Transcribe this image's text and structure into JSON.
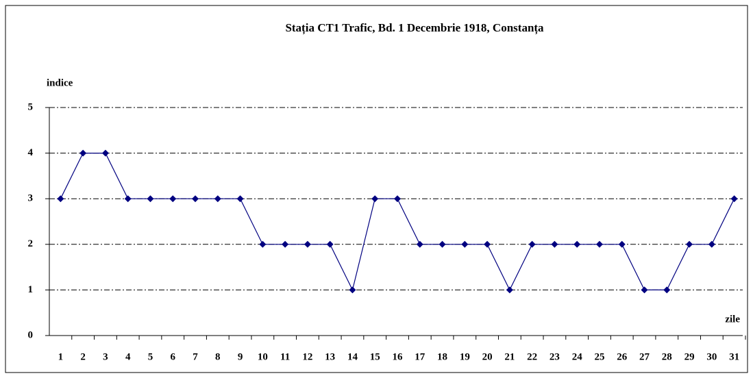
{
  "chart_data": {
    "type": "line",
    "title": "Stația CT1 Trafic, Bd. 1 Decembrie 1918, Constanța",
    "y_label": "indice",
    "x_label": "zile",
    "categories": [
      "1",
      "2",
      "3",
      "4",
      "5",
      "6",
      "7",
      "8",
      "9",
      "10",
      "11",
      "12",
      "13",
      "14",
      "15",
      "16",
      "17",
      "18",
      "19",
      "20",
      "21",
      "22",
      "23",
      "24",
      "25",
      "26",
      "27",
      "28",
      "29",
      "30",
      "31"
    ],
    "values": [
      3,
      4,
      4,
      3,
      3,
      3,
      3,
      3,
      3,
      2,
      2,
      2,
      2,
      1,
      3,
      3,
      2,
      2,
      2,
      2,
      1,
      2,
      2,
      2,
      2,
      2,
      1,
      1,
      2,
      2,
      3
    ],
    "color": "#000080",
    "ylim": [
      0,
      5
    ],
    "yticks": [
      0,
      1,
      2,
      3,
      4,
      5
    ],
    "grid": true
  }
}
